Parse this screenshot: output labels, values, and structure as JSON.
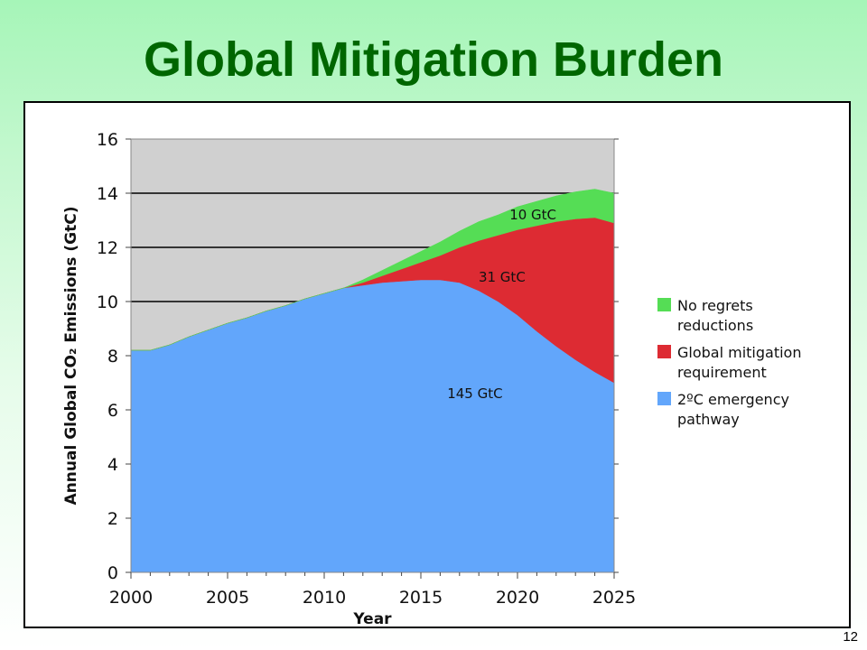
{
  "slide": {
    "title": "Global Mitigation Burden",
    "page_number": "12"
  },
  "colors": {
    "title": "#006600",
    "plot_background": "#d0d0d0",
    "no_regrets": "#55dd55",
    "mitigation": "#dd2b33",
    "emergency": "#62a6fb"
  },
  "chart_data": {
    "type": "area",
    "title": "",
    "xlabel": "Year",
    "ylabel": "Annual Global CO₂ Emissions (GtC)",
    "xlim": [
      2000,
      2025
    ],
    "ylim": [
      0,
      16
    ],
    "x_ticks": [
      "2000",
      "2005",
      "2010",
      "2015",
      "2020",
      "2025"
    ],
    "y_ticks": [
      "0",
      "2",
      "4",
      "6",
      "8",
      "10",
      "12",
      "14",
      "16"
    ],
    "grid": "horizontal",
    "stacked": true,
    "legend_position": "right",
    "x": [
      2000,
      2001,
      2002,
      2003,
      2004,
      2005,
      2006,
      2007,
      2008,
      2009,
      2010,
      2011,
      2012,
      2013,
      2014,
      2015,
      2016,
      2017,
      2018,
      2019,
      2020,
      2021,
      2022,
      2023,
      2024,
      2025
    ],
    "series": [
      {
        "name": "2°C emergency pathway",
        "color": "#62a6fb",
        "values": [
          8.2,
          8.2,
          8.4,
          8.7,
          8.95,
          9.2,
          9.4,
          9.65,
          9.85,
          10.1,
          10.3,
          10.5,
          10.6,
          10.7,
          10.75,
          10.8,
          10.8,
          10.7,
          10.4,
          10.0,
          9.5,
          8.9,
          8.35,
          7.85,
          7.4,
          7.0
        ]
      },
      {
        "name": "Global mitigation requirement",
        "color": "#dd2b33",
        "values": [
          0,
          0,
          0,
          0,
          0,
          0,
          0,
          0,
          0,
          0,
          0,
          0,
          0.1,
          0.25,
          0.45,
          0.65,
          0.9,
          1.3,
          1.85,
          2.45,
          3.15,
          3.9,
          4.6,
          5.2,
          5.7,
          5.9
        ]
      },
      {
        "name": "No regrets reductions",
        "color": "#55dd55",
        "values": [
          0,
          0,
          0,
          0,
          0,
          0,
          0,
          0,
          0,
          0,
          0,
          0,
          0.1,
          0.2,
          0.3,
          0.4,
          0.5,
          0.6,
          0.7,
          0.75,
          0.85,
          0.9,
          0.95,
          1.0,
          1.05,
          1.1
        ]
      }
    ],
    "legend": [
      {
        "key": "no_regrets",
        "line1": "No regrets",
        "line2": "reductions",
        "color": "#55dd55"
      },
      {
        "key": "mitigation",
        "line1": "Global mitigation",
        "line2": "requirement",
        "color": "#dd2b33"
      },
      {
        "key": "emergency",
        "line1": "2ºC emergency",
        "line2": "pathway",
        "color": "#62a6fb"
      }
    ],
    "annotations": [
      {
        "key": "green_total",
        "text": "10 GtC",
        "x": 2020.8,
        "y": 13.2
      },
      {
        "key": "red_total",
        "text": "31 GtC",
        "x": 2019.2,
        "y": 10.9
      },
      {
        "key": "blue_total",
        "text": "145 GtC",
        "x": 2017.8,
        "y": 6.6
      }
    ]
  }
}
